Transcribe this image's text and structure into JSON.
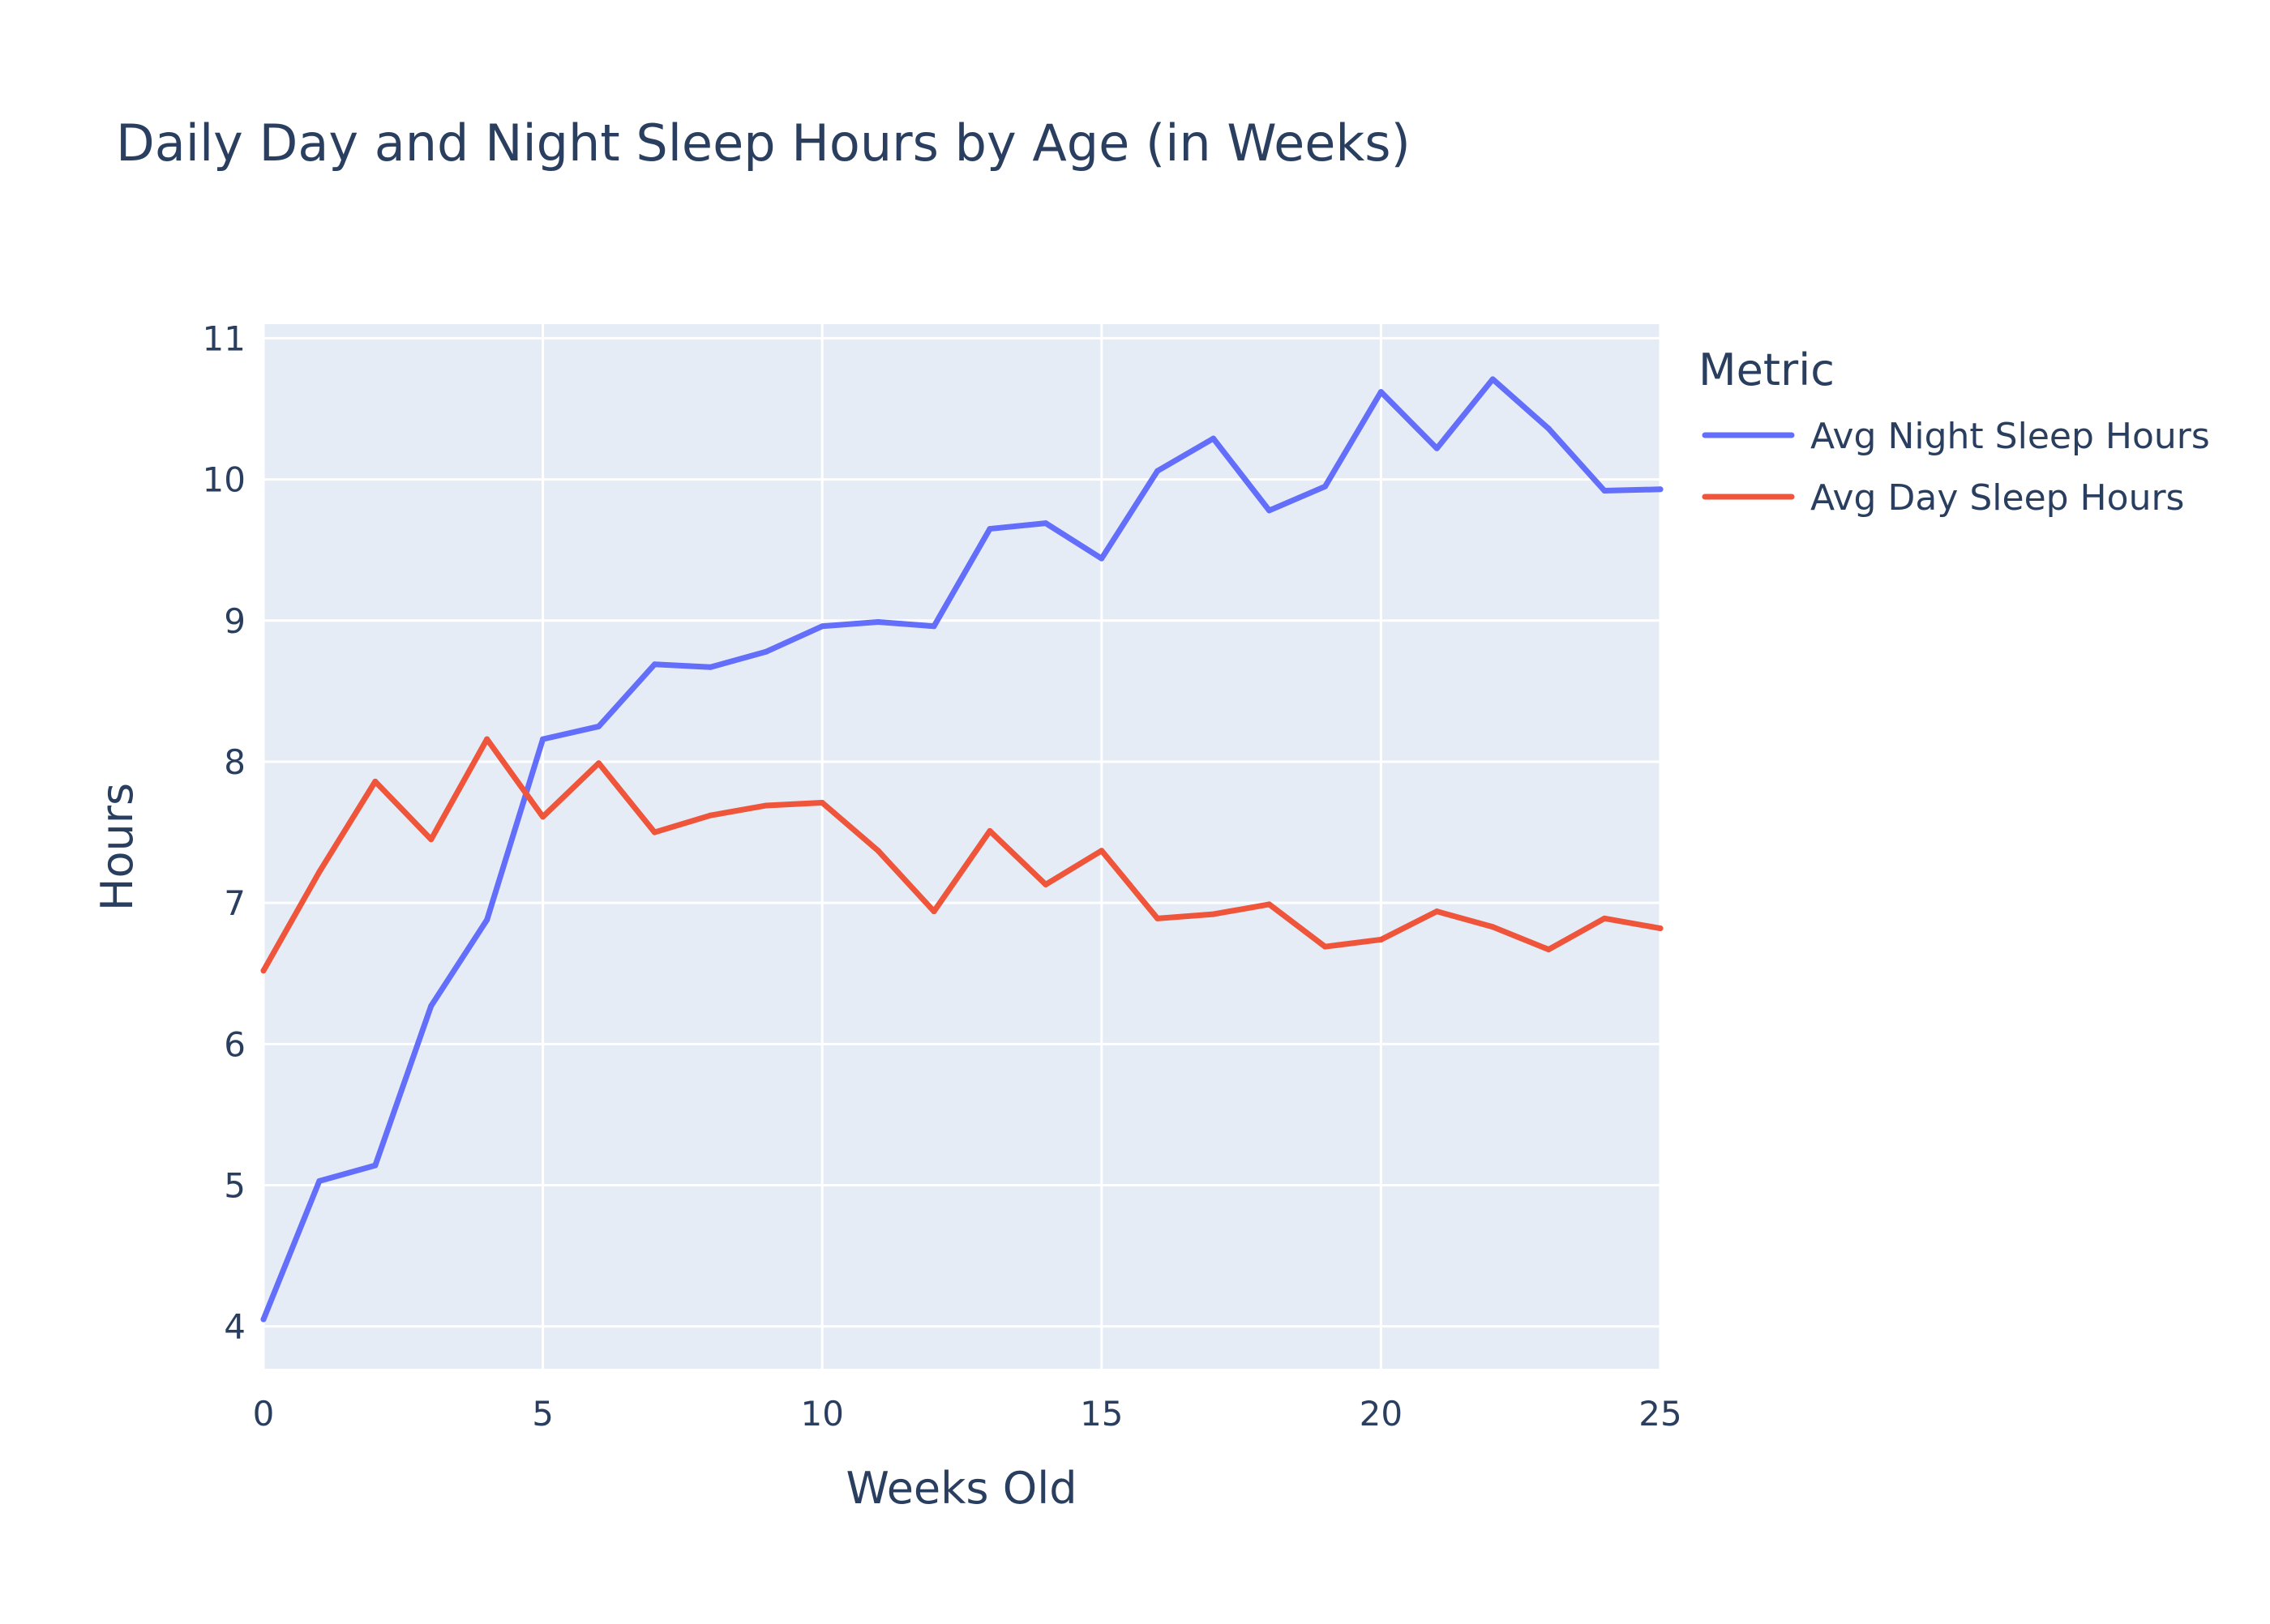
{
  "chart_data": {
    "type": "line",
    "title": "Daily Day and Night Sleep Hours by Age (in Weeks)",
    "xlabel": "Weeks Old",
    "ylabel": "Hours",
    "xlim": [
      0,
      25
    ],
    "ylim": [
      3.7,
      11.1
    ],
    "xticks": [
      0,
      5,
      10,
      15,
      20,
      25
    ],
    "yticks": [
      4,
      5,
      6,
      7,
      8,
      9,
      10,
      11
    ],
    "grid": true,
    "legend": {
      "title": "Metric",
      "placement": "right"
    },
    "x": [
      0,
      1,
      2,
      3,
      4,
      5,
      6,
      7,
      8,
      9,
      10,
      11,
      12,
      13,
      14,
      15,
      16,
      17,
      18,
      19,
      20,
      21,
      22,
      23,
      24,
      25
    ],
    "series": [
      {
        "name": "Avg Night Sleep Hours",
        "color": "#636efa",
        "values": [
          4.05,
          5.03,
          5.14,
          6.27,
          6.88,
          8.16,
          8.25,
          8.69,
          8.67,
          8.78,
          8.96,
          8.99,
          8.96,
          9.65,
          9.69,
          9.44,
          10.06,
          10.29,
          9.78,
          9.95,
          10.62,
          10.22,
          10.71,
          10.36,
          9.92,
          9.93
        ]
      },
      {
        "name": "Avg Day Sleep Hours",
        "color": "#ef553b",
        "values": [
          6.52,
          7.22,
          7.86,
          7.45,
          8.16,
          7.61,
          7.99,
          7.5,
          7.62,
          7.69,
          7.71,
          7.37,
          6.94,
          7.51,
          7.13,
          7.37,
          6.89,
          6.92,
          6.99,
          6.69,
          6.74,
          6.94,
          6.83,
          6.67,
          6.89,
          6.82
        ]
      }
    ]
  }
}
